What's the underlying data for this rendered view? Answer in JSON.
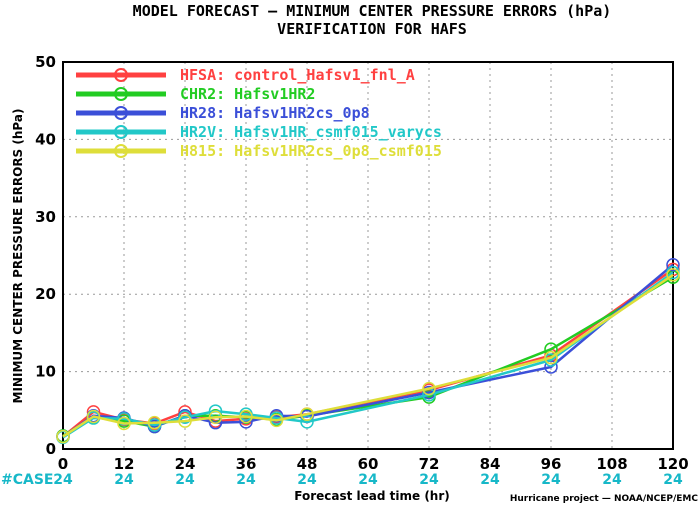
{
  "chart_data": {
    "type": "line",
    "title": "MODEL FORECAST — MINIMUM CENTER PRESSURE ERRORS (hPa)",
    "subtitle": "VERIFICATION FOR HAFS",
    "xlabel": "Forecast lead time (hr)",
    "ylabel": "MINIMUM CENTER PRESSURE ERRORS (hPa)",
    "xlim": [
      0,
      120
    ],
    "ylim": [
      0,
      50
    ],
    "xticks": [
      0,
      12,
      24,
      36,
      48,
      60,
      72,
      84,
      96,
      108,
      120
    ],
    "yticks": [
      0,
      10,
      20,
      30,
      40,
      50
    ],
    "grid": true,
    "legend_position": "top-left",
    "x": [
      0,
      6,
      12,
      18,
      24,
      30,
      36,
      42,
      48,
      72,
      96,
      120
    ],
    "series": [
      {
        "name": "HFSA: control_Hafsv1_fnl_A",
        "color": "#ff4040",
        "values": [
          1.6,
          4.8,
          3.8,
          3.3,
          4.8,
          3.6,
          3.9,
          4.1,
          4.5,
          7.6,
          12.1,
          23.2
        ]
      },
      {
        "name": "CHR2: Hafsv1HR2",
        "color": "#22cc22",
        "values": [
          1.7,
          4.1,
          3.6,
          2.9,
          4.3,
          4.3,
          4.1,
          3.8,
          4.3,
          6.7,
          12.9,
          22.2
        ]
      },
      {
        "name": "HR28: Hafsv1HR2cs_0p8",
        "color": "#3b4fd8",
        "values": [
          1.6,
          4.3,
          4.0,
          2.9,
          4.3,
          3.4,
          3.5,
          4.3,
          4.2,
          7.3,
          10.6,
          23.8
        ]
      },
      {
        "name": "HR2V: Hafsv1HR_csmf015_varycs",
        "color": "#22c8c8",
        "values": [
          1.5,
          4.0,
          3.9,
          3.1,
          4.1,
          4.9,
          4.5,
          4.0,
          3.5,
          7.0,
          11.5,
          22.8
        ]
      },
      {
        "name": "H815: Hafsv1HR2cs_0p8_csmf015",
        "color": "#dede3a",
        "values": [
          1.6,
          4.2,
          3.3,
          3.4,
          3.6,
          4.1,
          4.2,
          3.7,
          4.5,
          7.8,
          11.8,
          22.5
        ]
      }
    ],
    "case_label": "#CASE",
    "case_counts": [
      "24",
      "24",
      "24",
      "24",
      "24",
      "24",
      "24",
      "24",
      "24",
      "24",
      "24"
    ]
  },
  "footer": {
    "credit": "Hurricane project — NOAA/NCEP/EMC"
  }
}
